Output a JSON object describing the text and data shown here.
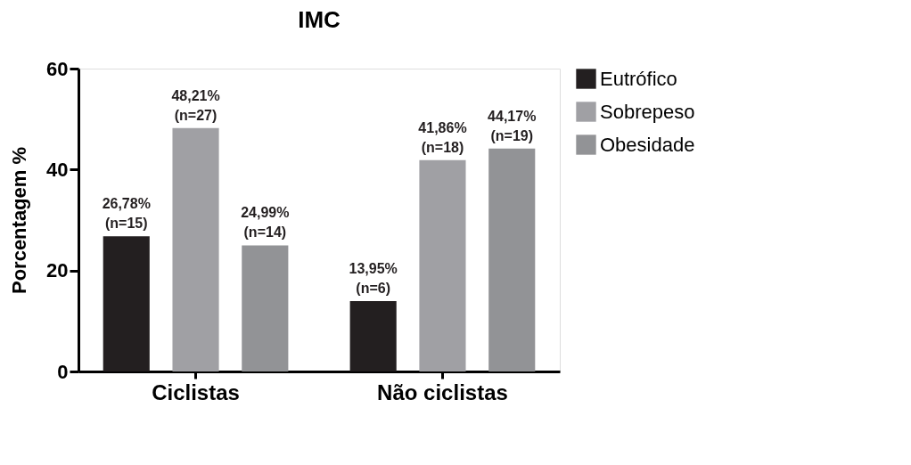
{
  "chart_data": {
    "type": "bar",
    "title": "IMC",
    "ylabel": "Porcentagem %",
    "categories": [
      "Ciclistas",
      "Não ciclistas"
    ],
    "series": [
      {
        "name": "Eutrófico",
        "color": "#231f20",
        "values": [
          26.78,
          13.95
        ],
        "value_labels": [
          "26,78%\n(n=15)",
          "13,95%\n(n=6)"
        ]
      },
      {
        "name": "Sobrepeso",
        "color": "#a0a0a4",
        "values": [
          48.21,
          41.86
        ],
        "value_labels": [
          "48,21%\n(n=27)",
          "41,86%\n(n=18)"
        ]
      },
      {
        "name": "Obesidade",
        "color": "#929396",
        "values": [
          24.99,
          44.17
        ],
        "value_labels": [
          "24,99%\n(n=14)",
          "44,17%\n(n=19)"
        ]
      }
    ],
    "ylim": [
      0,
      60
    ],
    "yticks": [
      0,
      20,
      40,
      60
    ],
    "grid": false,
    "legend": "top right"
  }
}
